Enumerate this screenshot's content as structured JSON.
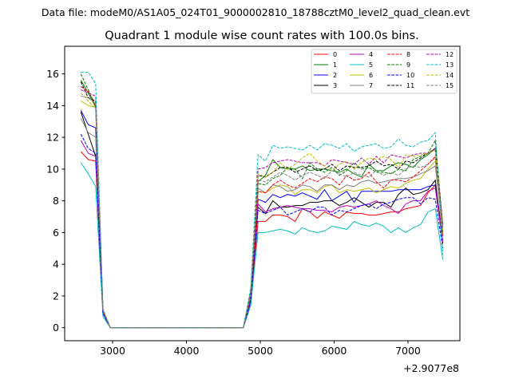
{
  "chart_data": {
    "type": "line",
    "suptitle": "Data file: modeM0/AS1A05_024T01_9000002810_18788cztM0_level2_quad_clean.evt",
    "title": "Quadrant 1 module wise count rates with 100.0s bins.",
    "xlabel": "",
    "ylabel": "",
    "x_offset_label": "+2.9077e8",
    "xlim": [
      2351,
      7703
    ],
    "ylim": [
      -0.82,
      17.74
    ],
    "xticks": [
      3000,
      4000,
      5000,
      6000,
      7000
    ],
    "yticks": [
      0,
      2,
      4,
      6,
      8,
      10,
      12,
      14,
      16
    ],
    "grid": false,
    "legend_placement": "top-right",
    "legend_columns": 4,
    "x_start": 2570,
    "x_step": 100,
    "gap_bins": 19,
    "gap_value": 0,
    "series": [
      {
        "name": "0",
        "color": "#ff0000",
        "dash": false,
        "pre": [
          11.1,
          10.6,
          10.5
        ],
        "drop": 0.9,
        "rise": 1.6,
        "plateau": [
          6.7,
          6.7,
          7.1,
          7.1,
          7.0,
          6.7,
          7.5,
          7.3,
          6.9,
          7.3,
          7.1,
          6.9,
          7.3,
          7.2,
          7.2,
          7.1,
          7.1,
          7.2,
          7.3,
          7.3,
          7.5,
          7.6,
          7.7,
          8.5,
          9.0
        ],
        "end": 5.8
      },
      {
        "name": "1",
        "color": "#008000",
        "dash": false,
        "pre": [
          15.6,
          14.8,
          13.9
        ],
        "drop": 1.1,
        "rise": 2.3,
        "plateau": [
          9.2,
          9.6,
          10.6,
          10.1,
          10.0,
          10.0,
          10.2,
          9.9,
          10.0,
          10.0,
          9.9,
          9.8,
          10.0,
          9.7,
          9.5,
          10.3,
          9.9,
          9.9,
          10.2,
          10.4,
          10.3,
          10.1,
          10.6,
          10.9,
          11.3
        ],
        "end": 6.5
      },
      {
        "name": "2",
        "color": "#0000ff",
        "dash": false,
        "pre": [
          13.7,
          12.8,
          12.6
        ],
        "drop": 1.0,
        "rise": 1.9,
        "plateau": [
          8.1,
          7.9,
          8.4,
          8.2,
          8.4,
          8.3,
          8.5,
          8.3,
          8.1,
          8.7,
          8.0,
          8.3,
          8.6,
          7.9,
          8.6,
          8.6,
          8.6,
          8.6,
          8.6,
          8.7,
          8.7,
          8.7,
          8.7,
          8.9,
          9.0
        ],
        "end": 5.5
      },
      {
        "name": "3",
        "color": "#000000",
        "dash": false,
        "pre": [
          13.6,
          12.2,
          10.8
        ],
        "drop": 0.9,
        "rise": 1.8,
        "plateau": [
          7.6,
          7.2,
          8.0,
          7.6,
          7.6,
          7.7,
          7.7,
          7.9,
          7.9,
          8.0,
          8.0,
          7.7,
          7.9,
          8.2,
          7.9,
          7.6,
          7.9,
          7.9,
          7.6,
          8.4,
          8.8,
          8.4,
          8.5,
          8.7,
          9.3
        ],
        "end": 5.3
      },
      {
        "name": "4",
        "color": "#bf00bf",
        "dash": false,
        "pre": [
          11.8,
          11.0,
          10.8
        ],
        "drop": 0.9,
        "rise": 1.7,
        "plateau": [
          7.8,
          7.3,
          7.5,
          7.6,
          7.7,
          7.6,
          7.5,
          7.5,
          7.4,
          7.4,
          7.3,
          7.6,
          7.7,
          7.6,
          7.7,
          7.8,
          8.0,
          7.7,
          7.5,
          7.2,
          7.8,
          8.0,
          8.0,
          8.6,
          8.8
        ],
        "end": 5.4
      },
      {
        "name": "5",
        "color": "#00bfbf",
        "dash": false,
        "pre": [
          10.4,
          9.7,
          8.9
        ],
        "drop": 0.7,
        "rise": 1.4,
        "plateau": [
          6.0,
          6.0,
          6.1,
          6.2,
          6.1,
          5.9,
          6.3,
          6.1,
          6.0,
          6.1,
          6.4,
          6.3,
          6.2,
          6.7,
          6.5,
          6.4,
          6.6,
          6.4,
          6.0,
          6.3,
          6.0,
          6.3,
          6.5,
          7.3,
          7.5
        ],
        "end": 4.3
      },
      {
        "name": "6",
        "color": "#bfbf00",
        "dash": false,
        "pre": [
          14.3,
          14.0,
          13.9
        ],
        "drop": 1.0,
        "rise": 2.0,
        "plateau": [
          8.6,
          8.5,
          8.8,
          9.0,
          8.9,
          8.4,
          8.7,
          8.7,
          8.5,
          8.9,
          9.0,
          8.5,
          8.7,
          8.6,
          8.7,
          8.8,
          8.5,
          8.7,
          8.9,
          8.8,
          9.1,
          9.3,
          9.4,
          10.0,
          10.5
        ],
        "end": 6.0
      },
      {
        "name": "7",
        "color": "#808080",
        "dash": false,
        "pre": [
          13.2,
          12.3,
          12.0
        ],
        "drop": 1.0,
        "rise": 2.0,
        "plateau": [
          8.8,
          8.5,
          9.0,
          8.9,
          8.6,
          8.7,
          9.0,
          8.9,
          8.6,
          9.0,
          9.0,
          8.7,
          9.0,
          8.9,
          9.2,
          9.3,
          9.1,
          9.2,
          9.3,
          9.4,
          9.4,
          9.5,
          9.7,
          9.9,
          10.2
        ],
        "end": 6.2
      },
      {
        "name": "8",
        "color": "#ff0000",
        "dash": true,
        "pre": [
          15.2,
          14.9,
          14.0
        ],
        "drop": 1.0,
        "rise": 2.1,
        "plateau": [
          8.6,
          8.5,
          9.0,
          9.3,
          9.0,
          8.8,
          9.1,
          9.4,
          9.2,
          9.5,
          9.4,
          9.0,
          9.6,
          9.3,
          9.4,
          9.8,
          9.2,
          8.8,
          9.3,
          9.3,
          9.2,
          9.5,
          9.9,
          10.3,
          10.8
        ],
        "end": 6.3
      },
      {
        "name": "9",
        "color": "#008000",
        "dash": true,
        "pre": [
          16.0,
          15.0,
          14.0
        ],
        "drop": 1.1,
        "rise": 2.2,
        "plateau": [
          9.1,
          9.0,
          9.4,
          9.6,
          10.1,
          10.0,
          9.4,
          10.4,
          10.0,
          9.8,
          10.1,
          9.6,
          9.9,
          10.4,
          10.0,
          10.1,
          9.8,
          9.8,
          9.7,
          10.0,
          9.9,
          10.6,
          10.8,
          11.0,
          11.8
        ],
        "end": 6.5
      },
      {
        "name": "10",
        "color": "#0000ff",
        "dash": true,
        "pre": [
          12.2,
          11.3,
          11.0
        ],
        "drop": 0.9,
        "rise": 1.7,
        "plateau": [
          7.4,
          7.2,
          7.4,
          7.6,
          7.1,
          7.3,
          7.5,
          7.3,
          7.6,
          7.6,
          7.1,
          7.4,
          7.3,
          7.5,
          7.7,
          7.8,
          7.5,
          7.8,
          7.9,
          8.1,
          8.2,
          8.2,
          7.8,
          8.2,
          8.1
        ],
        "end": 5.0
      },
      {
        "name": "11",
        "color": "#000000",
        "dash": true,
        "pre": [
          15.5,
          14.5,
          14.3
        ],
        "drop": 1.1,
        "rise": 2.2,
        "plateau": [
          9.6,
          9.5,
          9.8,
          10.1,
          10.1,
          9.8,
          10.0,
          10.2,
          9.9,
          10.0,
          10.3,
          9.9,
          10.2,
          10.1,
          10.1,
          10.2,
          10.5,
          10.2,
          10.3,
          10.0,
          10.5,
          10.4,
          10.7,
          11.0,
          11.3
        ],
        "end": 6.0
      },
      {
        "name": "12",
        "color": "#bf00bf",
        "dash": true,
        "pre": [
          15.0,
          14.8,
          14.6
        ],
        "drop": 1.1,
        "rise": 2.3,
        "plateau": [
          10.0,
          10.1,
          10.4,
          10.5,
          10.6,
          10.5,
          10.4,
          10.4,
          10.4,
          10.2,
          10.6,
          10.5,
          10.4,
          10.3,
          10.7,
          10.3,
          10.8,
          10.4,
          10.9,
          10.8,
          10.7,
          10.9,
          11.0,
          11.0,
          11.3
        ],
        "end": 6.5
      },
      {
        "name": "13",
        "color": "#00bfbf",
        "dash": true,
        "pre": [
          16.1,
          16.1,
          15.4
        ],
        "drop": 1.2,
        "rise": 2.5,
        "plateau": [
          10.9,
          10.5,
          11.5,
          11.3,
          11.4,
          11.3,
          11.2,
          11.5,
          11.2,
          11.6,
          11.5,
          11.3,
          11.6,
          11.1,
          11.4,
          11.5,
          11.6,
          11.3,
          11.4,
          11.9,
          11.5,
          11.4,
          11.7,
          11.8,
          12.3
        ],
        "end": 4.6
      },
      {
        "name": "14",
        "color": "#bfbf00",
        "dash": true,
        "pre": [
          14.8,
          14.3,
          13.8
        ],
        "drop": 1.1,
        "rise": 2.2,
        "plateau": [
          9.7,
          9.5,
          9.8,
          10.4,
          10.0,
          10.3,
          10.7,
          11.0,
          10.5,
          10.2,
          9.9,
          10.3,
          10.5,
          10.0,
          10.4,
          10.7,
          10.6,
          10.8,
          10.6,
          10.1,
          10.9,
          10.8,
          10.9,
          11.0,
          11.2
        ],
        "end": 6.0
      },
      {
        "name": "15",
        "color": "#808080",
        "dash": true,
        "pre": [
          14.6,
          14.5,
          14.1
        ],
        "drop": 1.1,
        "rise": 2.1,
        "plateau": [
          9.3,
          9.2,
          9.5,
          9.8,
          9.6,
          9.3,
          9.6,
          9.8,
          9.6,
          9.4,
          9.9,
          9.7,
          9.5,
          9.8,
          9.6,
          9.5,
          9.9,
          9.6,
          9.8,
          9.6,
          10.0,
          10.2,
          10.1,
          10.3,
          10.7
        ],
        "end": 6.3
      }
    ]
  }
}
